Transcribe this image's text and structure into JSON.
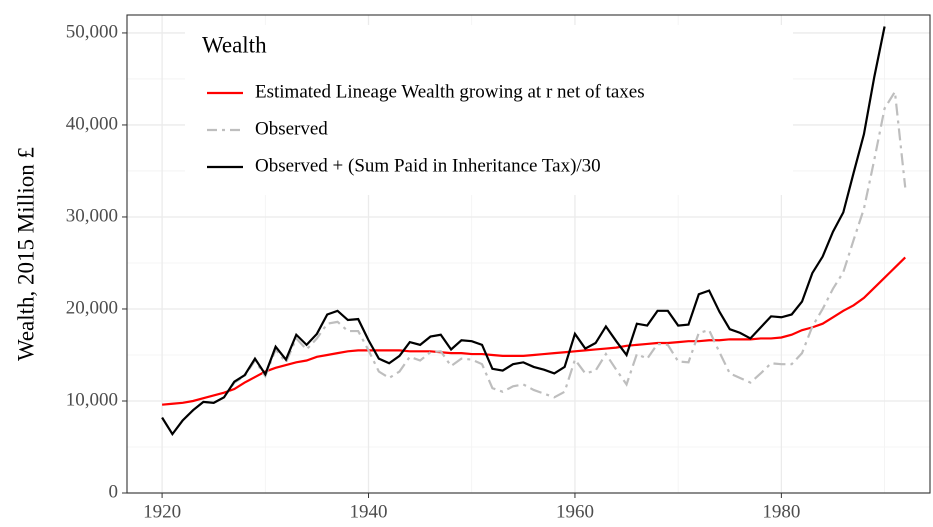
{
  "chart_data": {
    "type": "line",
    "y_label": "Wealth, 2015 Million £",
    "legend_title": "Wealth",
    "legend_position": "top-left",
    "grid": true,
    "x": [
      1920,
      1921,
      1922,
      1923,
      1924,
      1925,
      1926,
      1927,
      1928,
      1929,
      1930,
      1931,
      1932,
      1933,
      1934,
      1935,
      1936,
      1937,
      1938,
      1939,
      1940,
      1941,
      1942,
      1943,
      1944,
      1945,
      1946,
      1947,
      1948,
      1949,
      1950,
      1951,
      1952,
      1953,
      1954,
      1955,
      1956,
      1957,
      1958,
      1959,
      1960,
      1961,
      1962,
      1963,
      1964,
      1965,
      1966,
      1967,
      1968,
      1969,
      1970,
      1971,
      1972,
      1973,
      1974,
      1975,
      1976,
      1977,
      1978,
      1979,
      1980,
      1981,
      1982,
      1983,
      1984,
      1985,
      1986,
      1987,
      1988,
      1989,
      1990,
      1991,
      1992
    ],
    "xlim": [
      1916.6,
      1994.4
    ],
    "xticks": [
      1920,
      1940,
      1960,
      1980
    ],
    "ylim": [
      0,
      51950
    ],
    "yticks": [
      0,
      {
        "value": 10000,
        "label": "10,000"
      },
      {
        "value": 20000,
        "label": "20,000"
      },
      {
        "value": 30000,
        "label": "30,000"
      },
      {
        "value": 40000,
        "label": "40,000"
      },
      {
        "value": 50000,
        "label": "50,000"
      }
    ],
    "series": [
      {
        "name": "Estimated Lineage Wealth growing at r net of taxes",
        "color": "#ff0000",
        "dash": "solid",
        "values": [
          9600,
          9700,
          9800,
          10000,
          10300,
          10600,
          10900,
          11300,
          12000,
          12600,
          13200,
          13600,
          13900,
          14200,
          14400,
          14800,
          15000,
          15200,
          15400,
          15500,
          15500,
          15500,
          15500,
          15500,
          15400,
          15400,
          15400,
          15300,
          15200,
          15200,
          15100,
          15100,
          15000,
          14900,
          14900,
          14900,
          15000,
          15100,
          15200,
          15300,
          15400,
          15500,
          15600,
          15700,
          15800,
          16000,
          16100,
          16200,
          16300,
          16300,
          16400,
          16500,
          16500,
          16600,
          16600,
          16700,
          16700,
          16700,
          16800,
          16800,
          16900,
          17200,
          17700,
          18000,
          18400,
          19100,
          19800,
          20400,
          21200,
          22300,
          23400,
          24500,
          25600
        ]
      },
      {
        "name": "Observed",
        "color": "#bebebe",
        "dash": "dotdash",
        "values": [
          8200,
          6400,
          7900,
          9000,
          9900,
          9800,
          10400,
          12000,
          12700,
          14400,
          12700,
          15600,
          14200,
          16800,
          15600,
          16800,
          18400,
          18600,
          17600,
          17600,
          15500,
          13200,
          12500,
          13200,
          14800,
          14400,
          15300,
          15400,
          13800,
          14600,
          14500,
          14000,
          11400,
          11000,
          11600,
          11800,
          11200,
          10800,
          10400,
          11000,
          14500,
          13000,
          13300,
          15100,
          13400,
          11800,
          15100,
          14600,
          16200,
          16100,
          14300,
          14200,
          17400,
          17700,
          15300,
          13000,
          12500,
          12000,
          13000,
          14100,
          14000,
          14000,
          15200,
          18100,
          20000,
          22200,
          24000,
          27500,
          30900,
          36200,
          41800,
          43600,
          33200
        ]
      },
      {
        "name": "Observed + (Sum Paid in Inheritance Tax)/30",
        "color": "#000000",
        "dash": "solid",
        "values": [
          8200,
          6400,
          7900,
          9000,
          9900,
          9800,
          10400,
          12100,
          12800,
          14600,
          12900,
          15900,
          14500,
          17200,
          16100,
          17300,
          19400,
          19800,
          18800,
          18900,
          16600,
          14600,
          14100,
          14900,
          16400,
          16100,
          17000,
          17200,
          15600,
          16600,
          16500,
          16100,
          13500,
          13300,
          14000,
          14200,
          13700,
          13400,
          13000,
          13700,
          17300,
          15700,
          16300,
          18100,
          16500,
          15000,
          18400,
          18200,
          19800,
          19800,
          18200,
          18300,
          21600,
          22000,
          19700,
          17800,
          17400,
          16800,
          18000,
          19200,
          19100,
          19400,
          20800,
          23900,
          25700,
          28400,
          30500,
          34800,
          39000,
          45200,
          50700,
          null,
          null
        ]
      }
    ]
  }
}
